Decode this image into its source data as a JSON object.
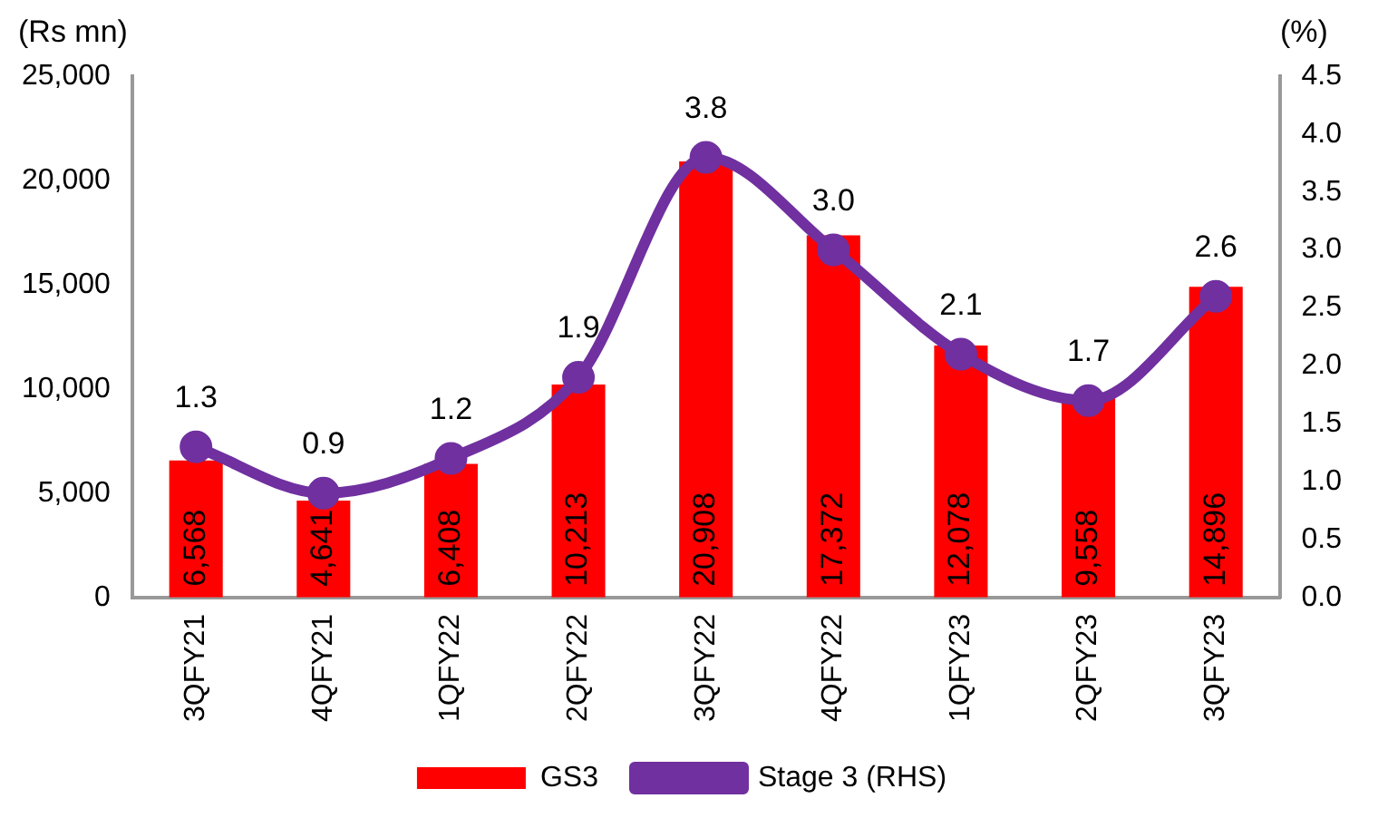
{
  "chart_data": {
    "type": "bar",
    "categories": [
      "3QFY21",
      "4QFY21",
      "1QFY22",
      "2QFY22",
      "3QFY22",
      "4QFY22",
      "1QFY23",
      "2QFY23",
      "3QFY23"
    ],
    "series": [
      {
        "name": "GS3",
        "color": "#ff0000",
        "values": [
          6568,
          4641,
          6408,
          10213,
          20908,
          17372,
          12078,
          9558,
          14896
        ],
        "value_labels": [
          "6,568",
          "4,641",
          "6,408",
          "10,213",
          "20,908",
          "17,372",
          "12,078",
          "9,558",
          "14,896"
        ]
      },
      {
        "name": "Stage 3 (RHS)",
        "type": "line",
        "axis": "y2",
        "color": "#7030a0",
        "values": [
          1.3,
          0.9,
          1.2,
          1.9,
          3.8,
          3.0,
          2.1,
          1.7,
          2.6
        ],
        "value_labels": [
          "1.3",
          "0.9",
          "1.2",
          "1.9",
          "3.8",
          "3.0",
          "2.1",
          "1.7",
          "2.6"
        ]
      }
    ],
    "ylabel": "(Rs mn)",
    "y2label": "(%)",
    "ylim": [
      0,
      25000
    ],
    "yticks": [
      {
        "value": 0,
        "label": "0"
      },
      {
        "value": 5000,
        "label": "5,000"
      },
      {
        "value": 10000,
        "label": "10,000"
      },
      {
        "value": 15000,
        "label": "15,000"
      },
      {
        "value": 20000,
        "label": "20,000"
      },
      {
        "value": 25000,
        "label": "25,000"
      }
    ],
    "y2lim": [
      0,
      4.5
    ],
    "y2ticks": [
      {
        "value": 0,
        "label": "0.0"
      },
      {
        "value": 0.5,
        "label": "0.5"
      },
      {
        "value": 1,
        "label": "1.0"
      },
      {
        "value": 1.5,
        "label": "1.5"
      },
      {
        "value": 2,
        "label": "2.0"
      },
      {
        "value": 2.5,
        "label": "2.5"
      },
      {
        "value": 3,
        "label": "3.0"
      },
      {
        "value": 3.5,
        "label": "3.5"
      },
      {
        "value": 4,
        "label": "4.0"
      },
      {
        "value": 4.5,
        "label": "4.5"
      }
    ],
    "grid": false,
    "legend": "bottom",
    "marker": "circle"
  }
}
